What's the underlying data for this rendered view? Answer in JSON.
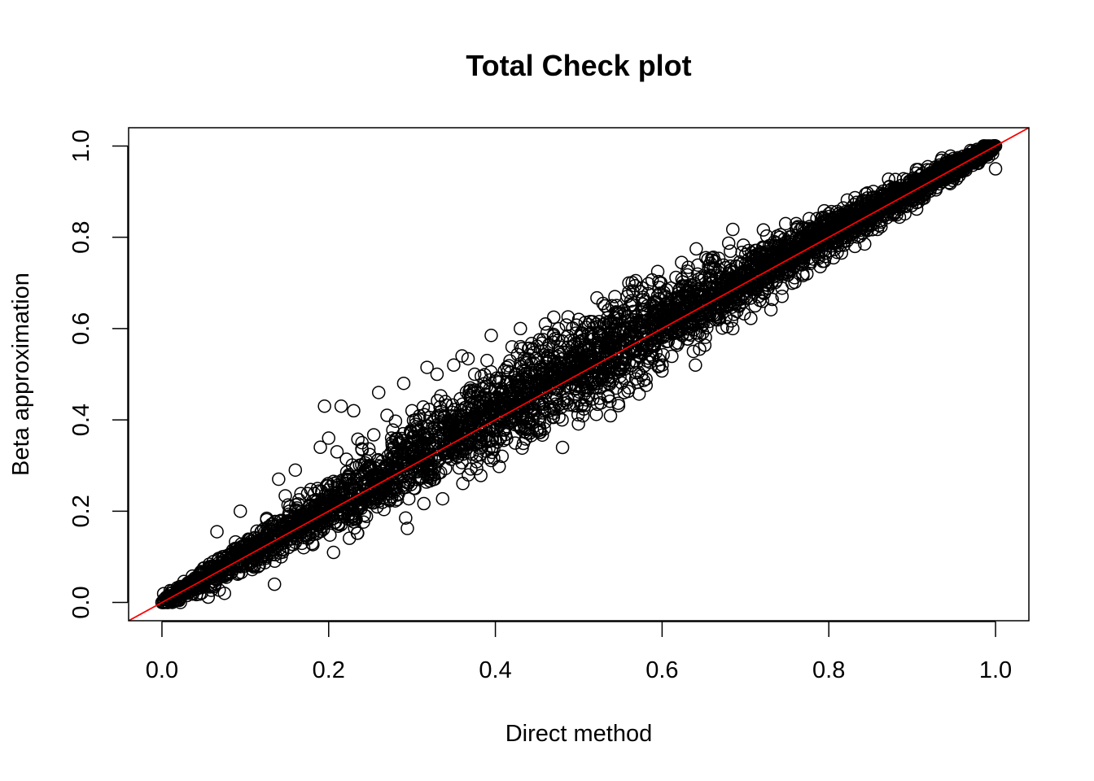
{
  "chart_data": {
    "type": "scatter",
    "title": "Total Check plot",
    "xlabel": "Direct method",
    "ylabel": "Beta approximation",
    "xlim": [
      -0.04,
      1.04
    ],
    "ylim": [
      -0.04,
      1.04
    ],
    "x_ticks": [
      "0.0",
      "0.2",
      "0.4",
      "0.6",
      "0.8",
      "1.0"
    ],
    "y_ticks": [
      "0.0",
      "0.2",
      "0.4",
      "0.6",
      "0.8",
      "1.0"
    ],
    "grid": false,
    "point_style": "open-circle",
    "point_color": "#000000",
    "reference_line": {
      "type": "identity",
      "intercept": 0,
      "slope": 1,
      "color": "#ff0000"
    },
    "points": [
      [
        0.0,
        0.0
      ],
      [
        0.01,
        0.01
      ],
      [
        0.02,
        0.03
      ],
      [
        0.03,
        0.02
      ],
      [
        0.04,
        0.05
      ],
      [
        0.05,
        0.04
      ],
      [
        0.06,
        0.08
      ],
      [
        0.07,
        0.06
      ],
      [
        0.066,
        0.155
      ],
      [
        0.094,
        0.2
      ],
      [
        0.075,
        0.02
      ],
      [
        0.09,
        0.11
      ],
      [
        0.1,
        0.08
      ],
      [
        0.11,
        0.13
      ],
      [
        0.12,
        0.1
      ],
      [
        0.13,
        0.16
      ],
      [
        0.135,
        0.04
      ],
      [
        0.143,
        0.1
      ],
      [
        0.14,
        0.27
      ],
      [
        0.16,
        0.29
      ],
      [
        0.16,
        0.2
      ],
      [
        0.17,
        0.12
      ],
      [
        0.19,
        0.34
      ],
      [
        0.195,
        0.43
      ],
      [
        0.2,
        0.36
      ],
      [
        0.21,
        0.33
      ],
      [
        0.215,
        0.43
      ],
      [
        0.23,
        0.42
      ],
      [
        0.22,
        0.27
      ],
      [
        0.24,
        0.35
      ],
      [
        0.26,
        0.46
      ],
      [
        0.27,
        0.41
      ],
      [
        0.28,
        0.29
      ],
      [
        0.29,
        0.48
      ],
      [
        0.3,
        0.42
      ],
      [
        0.31,
        0.32
      ],
      [
        0.318,
        0.515
      ],
      [
        0.33,
        0.5
      ],
      [
        0.34,
        0.44
      ],
      [
        0.35,
        0.52
      ],
      [
        0.36,
        0.54
      ],
      [
        0.37,
        0.47
      ],
      [
        0.39,
        0.53
      ],
      [
        0.395,
        0.585
      ],
      [
        0.42,
        0.56
      ],
      [
        0.43,
        0.6
      ],
      [
        0.44,
        0.5
      ],
      [
        0.46,
        0.61
      ],
      [
        0.47,
        0.625
      ],
      [
        0.48,
        0.4
      ],
      [
        0.5,
        0.62
      ],
      [
        0.52,
        0.48
      ],
      [
        0.54,
        0.65
      ],
      [
        0.56,
        0.68
      ],
      [
        0.58,
        0.66
      ],
      [
        0.6,
        0.52
      ],
      [
        0.62,
        0.67
      ],
      [
        0.64,
        0.52
      ],
      [
        0.645,
        0.555
      ],
      [
        0.66,
        0.75
      ],
      [
        0.68,
        0.72
      ],
      [
        0.7,
        0.74
      ],
      [
        0.72,
        0.68
      ],
      [
        0.74,
        0.78
      ],
      [
        0.78,
        0.82
      ],
      [
        0.8,
        0.77
      ],
      [
        0.82,
        0.84
      ],
      [
        0.85,
        0.84
      ],
      [
        0.88,
        0.9
      ],
      [
        0.9,
        0.88
      ],
      [
        0.93,
        0.94
      ],
      [
        0.95,
        0.93
      ],
      [
        0.97,
        0.99
      ],
      [
        0.99,
        0.98
      ],
      [
        1.0,
        1.0
      ],
      [
        1.0,
        0.95
      ]
    ]
  }
}
